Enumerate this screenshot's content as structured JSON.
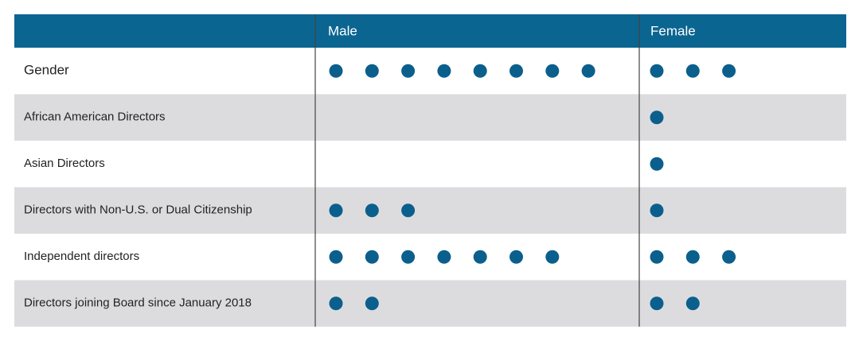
{
  "header": {
    "columns": [
      "Male",
      "Female"
    ]
  },
  "rows": [
    {
      "label": "Gender",
      "male": 8,
      "female": 3
    },
    {
      "label": "African American Directors",
      "male": 0,
      "female": 1
    },
    {
      "label": "Asian Directors",
      "male": 0,
      "female": 1
    },
    {
      "label": "Directors with Non-U.S. or Dual Citizenship",
      "male": 3,
      "female": 1
    },
    {
      "label": "Independent directors",
      "male": 7,
      "female": 3
    },
    {
      "label": "Directors joining Board since January 2018",
      "male": 2,
      "female": 2
    }
  ]
}
